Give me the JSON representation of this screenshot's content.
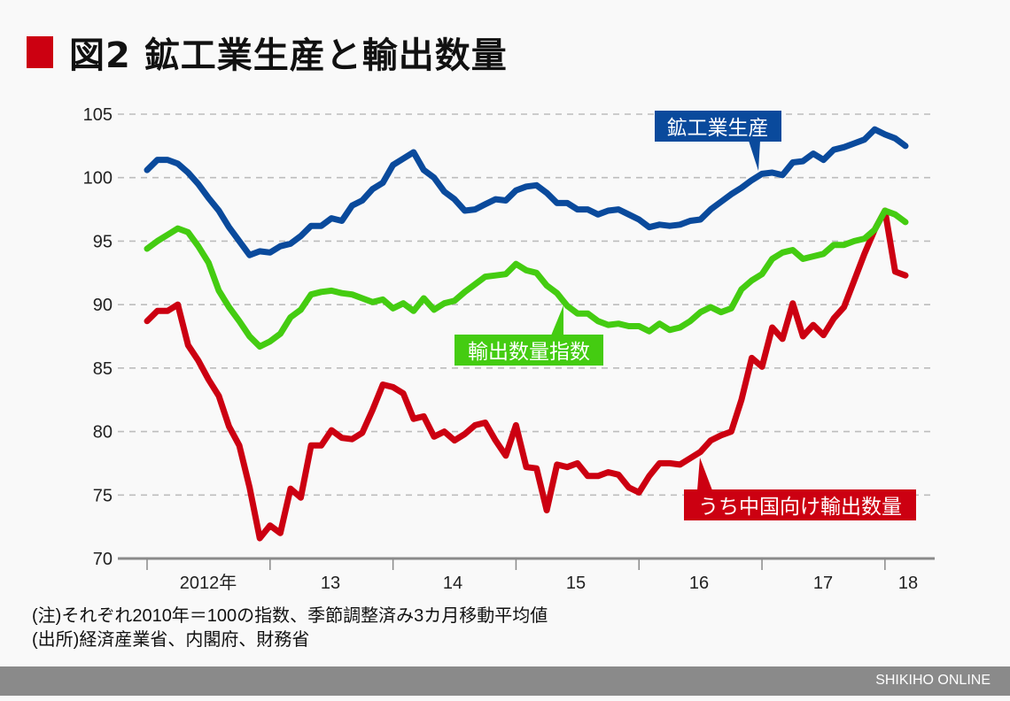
{
  "title": "図2 鉱工業生産と輸出数量",
  "notes": [
    "(注)それぞれ2010年＝100の指数、季節調整済み3カ月移動平均値",
    "(出所)経済産業省、内閣府、財務省"
  ],
  "footer": "SHIKIHO ONLINE",
  "colors": {
    "ip": "#0a4a9c",
    "exports": "#44cc11",
    "china": "#cc0011",
    "title_square": "#cc0011"
  },
  "chart_data": {
    "type": "line",
    "x_start": "2012-01",
    "x_end": "2018-03",
    "x_frequency": "monthly",
    "x_tick_labels": [
      "2012年",
      "13",
      "14",
      "15",
      "16",
      "17",
      "18"
    ],
    "y_ticks": [
      70,
      75,
      80,
      85,
      90,
      95,
      100,
      105
    ],
    "ylim": [
      70,
      105
    ],
    "grid": "horizontal dashed",
    "series": [
      {
        "name": "鉱工業生産",
        "color": "#0a4a9c",
        "values": [
          100.6,
          101.4,
          101.4,
          101.1,
          100.4,
          99.5,
          98.4,
          97.4,
          96.1,
          95.0,
          93.9,
          94.2,
          94.1,
          94.6,
          94.8,
          95.4,
          96.2,
          96.2,
          96.8,
          96.6,
          97.8,
          98.2,
          99.1,
          99.6,
          101.0,
          101.5,
          102.0,
          100.6,
          100.0,
          98.9,
          98.3,
          97.4,
          97.5,
          97.9,
          98.3,
          98.2,
          99.0,
          99.3,
          99.4,
          98.8,
          98.0,
          98.0,
          97.5,
          97.5,
          97.1,
          97.4,
          97.5,
          97.1,
          96.7,
          96.1,
          96.3,
          96.2,
          96.3,
          96.6,
          96.7,
          97.5,
          98.1,
          98.7,
          99.2,
          99.8,
          100.3,
          100.4,
          100.2,
          101.2,
          101.3,
          101.9,
          101.4,
          102.2,
          102.4,
          102.7,
          103.0,
          103.8,
          103.4,
          103.1,
          102.5
        ]
      },
      {
        "name": "輸出数量指数",
        "color": "#44cc11",
        "values": [
          94.4,
          95.0,
          95.5,
          96.0,
          95.7,
          94.6,
          93.3,
          91.1,
          89.8,
          88.7,
          87.5,
          86.7,
          87.1,
          87.7,
          89.0,
          89.6,
          90.8,
          91.0,
          91.1,
          90.9,
          90.8,
          90.5,
          90.2,
          90.4,
          89.7,
          90.1,
          89.5,
          90.5,
          89.6,
          90.1,
          90.3,
          91.0,
          91.6,
          92.2,
          92.3,
          92.4,
          93.2,
          92.7,
          92.5,
          91.5,
          90.9,
          89.9,
          89.3,
          89.3,
          88.7,
          88.4,
          88.5,
          88.3,
          88.3,
          87.9,
          88.5,
          88.0,
          88.2,
          88.7,
          89.4,
          89.8,
          89.4,
          89.7,
          91.2,
          91.9,
          92.4,
          93.6,
          94.1,
          94.3,
          93.6,
          93.8,
          94.0,
          94.7,
          94.7,
          95.0,
          95.2,
          95.9,
          97.4,
          97.1,
          96.5
        ]
      },
      {
        "name": "うち中国向け輸出数量",
        "color": "#cc0011",
        "values": [
          88.7,
          89.5,
          89.5,
          90.0,
          86.8,
          85.6,
          84.1,
          82.8,
          80.4,
          78.9,
          75.6,
          71.6,
          72.6,
          72.0,
          75.5,
          74.8,
          78.9,
          78.9,
          80.1,
          79.5,
          79.4,
          79.9,
          81.7,
          83.7,
          83.5,
          83.0,
          81.0,
          81.2,
          79.6,
          80.0,
          79.3,
          79.8,
          80.5,
          80.7,
          79.3,
          78.1,
          80.5,
          77.2,
          77.1,
          73.8,
          77.4,
          77.2,
          77.5,
          76.5,
          76.5,
          76.8,
          76.6,
          75.6,
          75.2,
          76.5,
          77.5,
          77.5,
          77.4,
          77.9,
          78.4,
          79.3,
          79.7,
          80.0,
          82.5,
          85.8,
          85.1,
          88.2,
          87.3,
          90.1,
          87.5,
          88.4,
          87.6,
          88.9,
          89.8,
          91.9,
          94.0,
          95.9,
          97.4,
          92.6,
          92.3
        ]
      }
    ]
  }
}
